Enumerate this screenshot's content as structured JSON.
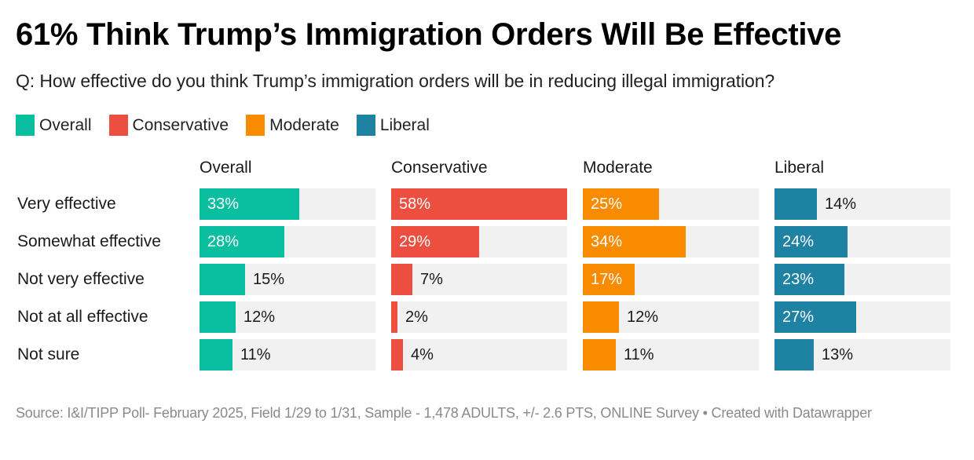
{
  "header": {
    "title": "61% Think Trump’s Immigration Orders Will Be Effective",
    "subtitle": "Q: How effective do you think Trump’s immigration orders will be in reducing illegal immigration?"
  },
  "legend": [
    {
      "label": "Overall",
      "color": "#0abfa0"
    },
    {
      "label": "Conservative",
      "color": "#ec4e3f"
    },
    {
      "label": "Moderate",
      "color": "#f98b00"
    },
    {
      "label": "Liberal",
      "color": "#1e82a2"
    }
  ],
  "footer": {
    "source": "Source: I&I/TIPP Poll- February 2025, Field 1/29 to 1/31, Sample - 1,478 ADULTS, +/- 2.6 PTS, ONLINE Survey • Created with Datawrapper"
  },
  "chart_data": {
    "type": "bar",
    "orientation": "horizontal",
    "layout": "small-multiples",
    "title": "61% Think Trump’s Immigration Orders Will Be Effective",
    "subtitle": "Q: How effective do you think Trump’s immigration orders will be in reducing illegal immigration?",
    "categories": [
      "Very effective",
      "Somewhat effective",
      "Not very effective",
      "Not at all effective",
      "Not sure"
    ],
    "unit": "%",
    "xlim": [
      0,
      58
    ],
    "grid": false,
    "legend_position": "top-left",
    "series": [
      {
        "name": "Overall",
        "color": "#0abfa0",
        "values": [
          33,
          28,
          15,
          12,
          11
        ],
        "labels": [
          "33%",
          "28%",
          "15%",
          "12%",
          "11%"
        ]
      },
      {
        "name": "Conservative",
        "color": "#ec4e3f",
        "values": [
          58,
          29,
          7,
          2,
          4
        ],
        "labels": [
          "58%",
          "29%",
          "7%",
          "2%",
          "4%"
        ]
      },
      {
        "name": "Moderate",
        "color": "#f98b00",
        "values": [
          25,
          34,
          17,
          12,
          11
        ],
        "labels": [
          "25%",
          "34%",
          "17%",
          "12%",
          "11%"
        ]
      },
      {
        "name": "Liberal",
        "color": "#1e82a2",
        "values": [
          14,
          24,
          23,
          27,
          13
        ],
        "labels": [
          "14%",
          "24%",
          "23%",
          "27%",
          "13%"
        ]
      }
    ]
  }
}
